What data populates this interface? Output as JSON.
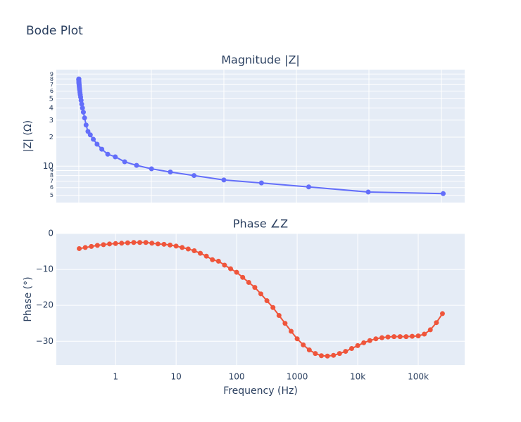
{
  "title": "Bode Plot",
  "chart_data": [
    {
      "type": "line",
      "title": "Magnitude |Z|",
      "y_label": "|Z| (Ω)",
      "log_y": true,
      "x": [
        0.251,
        0.316,
        0.398,
        0.501,
        0.631,
        0.794,
        1,
        1.259,
        1.585,
        1.995,
        2.512,
        3.162,
        3.981,
        5.012,
        6.31,
        7.943,
        10,
        12.59,
        15.85,
        19.95,
        25.12,
        31.62,
        39.81,
        50.12,
        63.1,
        79.43,
        100,
        125.9,
        158.5,
        199.5,
        251.2,
        316.2,
        398.1,
        501.2,
        631,
        794.3,
        1000,
        1259,
        1585,
        1995,
        2512,
        3162,
        3981,
        5012,
        6310,
        7943,
        10000,
        12589,
        15849,
        19953,
        25119,
        31623,
        39811,
        50119,
        63096,
        79433,
        100000,
        125893,
        158489,
        199526,
        251189
      ],
      "series": [
        {
          "name": "|Z|",
          "color": "#636efa",
          "values": [
            80,
            79.9,
            79.8,
            79.7,
            79.6,
            79.5,
            79.4,
            79.3,
            79.2,
            79,
            78.9,
            78.7,
            78.5,
            78.3,
            78.1,
            77.9,
            77.7,
            77.4,
            77.1,
            76.8,
            76.4,
            76,
            75.5,
            75,
            74.5,
            73.8,
            73,
            72,
            71,
            70,
            68.5,
            67,
            65,
            63,
            61,
            58,
            55,
            52,
            48,
            44,
            40,
            36.2,
            31.6,
            26.7,
            22.9,
            21.1,
            19,
            16.9,
            15,
            13.3,
            12.5,
            11.1,
            10.2,
            9.4,
            8.7,
            8,
            7.2,
            6.7,
            6.1,
            5.4,
            5.2
          ]
        }
      ],
      "xlim": [
        -15500,
        266000
      ],
      "xgrid": [
        0,
        50000,
        100000,
        150000,
        200000,
        250000
      ],
      "ylim": [
        4.2,
        100
      ],
      "yticks": [
        5,
        6,
        7,
        8,
        9,
        10,
        {
          "value": 20,
          "label": "2"
        },
        {
          "value": 30,
          "label": "3"
        },
        {
          "value": 40,
          "label": "4"
        },
        {
          "value": 50,
          "label": "5"
        },
        {
          "value": 60,
          "label": "6"
        },
        {
          "value": 70,
          "label": "7"
        },
        {
          "value": 80,
          "label": "8"
        },
        {
          "value": 90,
          "label": "9"
        }
      ],
      "grid": true
    },
    {
      "type": "line",
      "title": "Phase ∠Z",
      "y_label": "Phase (°)",
      "x_label": "Frequency (Hz)",
      "log_x": true,
      "x": [
        0.251,
        0.316,
        0.398,
        0.501,
        0.631,
        0.794,
        1,
        1.259,
        1.585,
        1.995,
        2.512,
        3.162,
        3.981,
        5.012,
        6.31,
        7.943,
        10,
        12.59,
        15.85,
        19.95,
        25.12,
        31.62,
        39.81,
        50.12,
        63.1,
        79.43,
        100,
        125.9,
        158.5,
        199.5,
        251.2,
        316.2,
        398.1,
        501.2,
        631,
        794.3,
        1000,
        1259,
        1585,
        1995,
        2512,
        3162,
        3981,
        5012,
        6310,
        7943,
        10000,
        12589,
        15849,
        19953,
        25119,
        31623,
        39811,
        50119,
        63096,
        79433,
        100000,
        125893,
        158489,
        199526,
        251189
      ],
      "series": [
        {
          "name": "Phase",
          "color": "#ef553b",
          "values": [
            -4.2,
            -3.9,
            -3.6,
            -3.3,
            -3.1,
            -2.9,
            -2.8,
            -2.7,
            -2.6,
            -2.5,
            -2.5,
            -2.5,
            -2.7,
            -2.9,
            -3,
            -3.2,
            -3.5,
            -3.9,
            -4.3,
            -4.8,
            -5.5,
            -6.3,
            -7.3,
            -7.7,
            -8.8,
            -9.8,
            -10.8,
            -12.2,
            -13.6,
            -15,
            -16.8,
            -18.7,
            -20.6,
            -22.8,
            -25,
            -27.2,
            -29.3,
            -31,
            -32.4,
            -33.4,
            -34,
            -34.1,
            -33.9,
            -33.4,
            -32.8,
            -32,
            -31.2,
            -30.4,
            -29.8,
            -29.3,
            -29,
            -28.8,
            -28.7,
            -28.7,
            -28.7,
            -28.6,
            -28.5,
            -28,
            -26.8,
            -24.8,
            -22.3
          ]
        }
      ],
      "xlim": [
        0.105,
        585000
      ],
      "xticks": [
        1,
        10,
        100,
        1000,
        {
          "value": 10000,
          "label": "10k"
        },
        {
          "value": 100000,
          "label": "100k"
        }
      ],
      "ylim": [
        -36.6,
        0
      ],
      "yticks": [
        {
          "value": -30,
          "label": "−30"
        },
        {
          "value": -20,
          "label": "−20"
        },
        {
          "value": -10,
          "label": "−10"
        },
        0
      ],
      "grid": true
    }
  ]
}
